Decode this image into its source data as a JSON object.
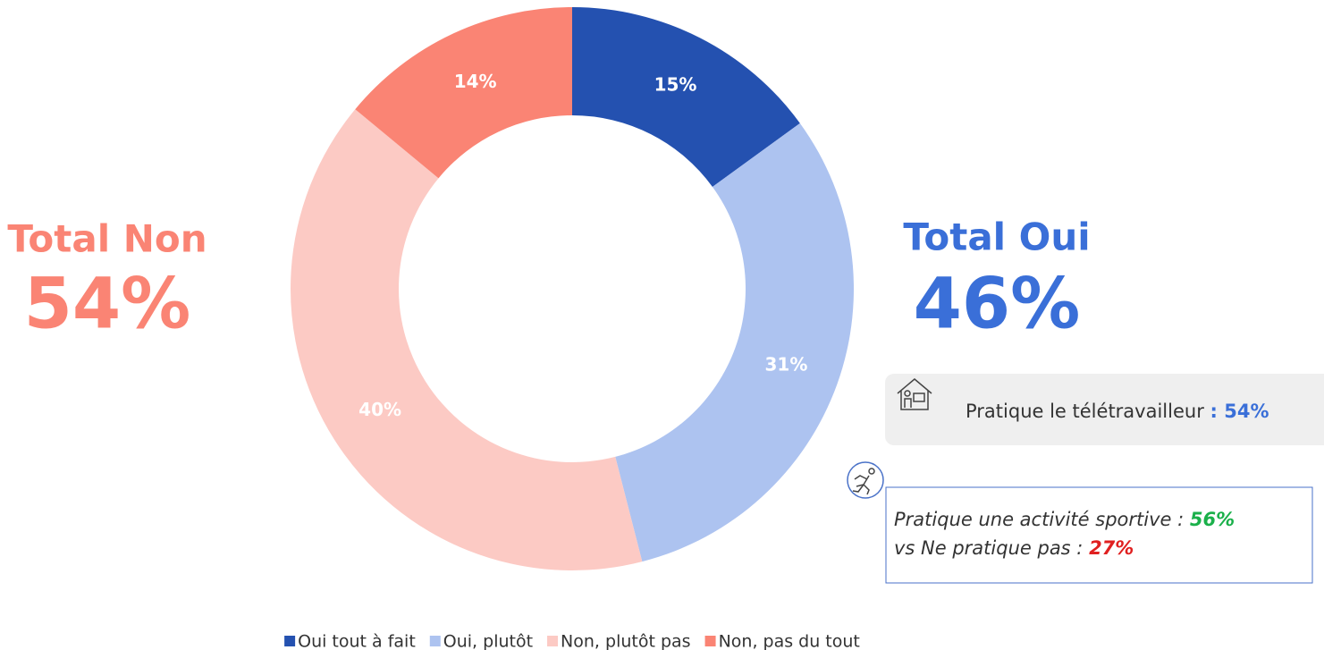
{
  "chart_data": {
    "type": "donut",
    "categories": [
      "Oui tout à fait",
      "Oui, plutôt",
      "Non, plutôt pas",
      "Non, pas du tout"
    ],
    "values": [
      15,
      31,
      40,
      14
    ],
    "value_labels": [
      "15%",
      "31%",
      "40%",
      "14%"
    ],
    "colors": [
      "#2451b0",
      "#adc3f0",
      "#fccac4",
      "#fa8474"
    ],
    "legend": "bottom"
  },
  "annotations": {
    "total_non": {
      "label": "Total Non",
      "value": "54%"
    },
    "total_oui": {
      "label": "Total Oui",
      "value": "46%"
    },
    "teletravail": {
      "text": "Pratique le télétravailleur",
      "value": ": 54%"
    },
    "sport": {
      "line1": "Pratique une activité sportive :",
      "value1": "56%",
      "line2": "vs Ne pratique pas :",
      "value2": "27%"
    }
  }
}
